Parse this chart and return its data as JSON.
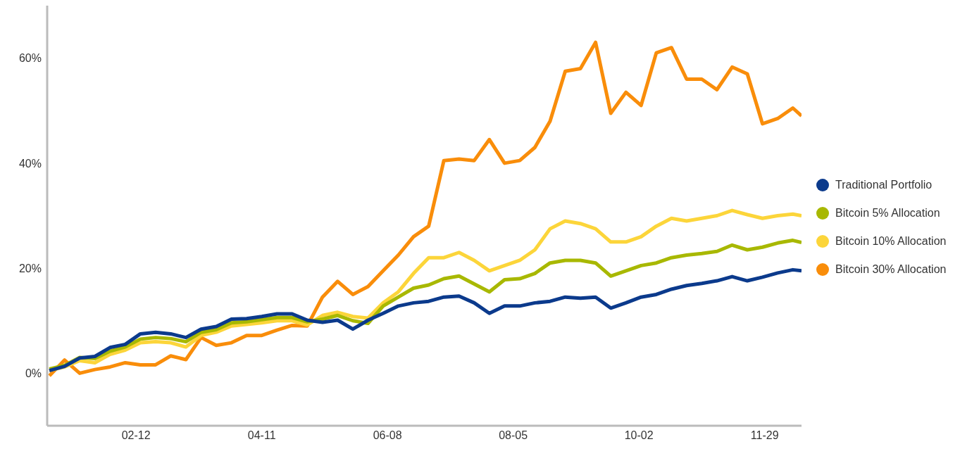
{
  "chart_data": {
    "type": "line",
    "x": [
      "--01-03",
      "--01-10",
      "--01-17",
      "--01-24",
      "--01-31",
      "--02-07",
      "--02-14",
      "--02-21",
      "--02-28",
      "--03-07",
      "--03-14",
      "--03-21",
      "--03-28",
      "--04-04",
      "--04-11",
      "--04-18",
      "--04-25",
      "--05-02",
      "--05-09",
      "--05-16",
      "--05-23",
      "--05-30",
      "--06-06",
      "--06-13",
      "--06-20",
      "--06-27",
      "--07-04",
      "--07-11",
      "--07-18",
      "--07-25",
      "--08-01",
      "--08-08",
      "--08-15",
      "--08-22",
      "--08-29",
      "--09-05",
      "--09-12",
      "--09-19",
      "--09-26",
      "--10-03",
      "--10-10",
      "--10-17",
      "--10-24",
      "--10-31",
      "--11-07",
      "--11-14",
      "--11-21",
      "--11-28",
      "--12-05",
      "--12-12",
      "--12-16"
    ],
    "series": [
      {
        "name": "Traditional Portfolio",
        "color": "#0b3a8c",
        "values": [
          0.5,
          1.3,
          2.9,
          3.2,
          4.9,
          5.5,
          7.5,
          7.8,
          7.5,
          6.8,
          8.4,
          8.9,
          10.3,
          10.4,
          10.8,
          11.3,
          11.3,
          10.1,
          9.7,
          10.1,
          8.4,
          10.1,
          11.4,
          12.8,
          13.4,
          13.7,
          14.5,
          14.7,
          13.4,
          11.4,
          12.8,
          12.8,
          13.4,
          13.7,
          14.5,
          14.3,
          14.5,
          12.4,
          13.4,
          14.5,
          15,
          16,
          16.7,
          17.1,
          17.6,
          18.4,
          17.6,
          18.3,
          19.1,
          19.7,
          19.5
        ]
      },
      {
        "name": "Bitcoin 5% Allocation",
        "color": "#a8b800",
        "values": [
          0.8,
          1.5,
          3,
          2.8,
          4.2,
          5,
          6.5,
          6.8,
          6.6,
          6,
          7.8,
          8.3,
          9.6,
          9.8,
          10.2,
          10.6,
          10.6,
          9.8,
          10.3,
          11,
          10,
          9.5,
          12.8,
          14.5,
          16.2,
          16.8,
          18,
          18.5,
          17,
          15.5,
          17.8,
          18,
          19,
          21,
          21.5,
          21.5,
          21,
          18.5,
          19.5,
          20.5,
          21,
          22,
          22.5,
          22.8,
          23.2,
          24.4,
          23.5,
          24,
          24.8,
          25.3,
          24.9
        ]
      },
      {
        "name": "Bitcoin 10% Allocation",
        "color": "#fcd53a",
        "values": [
          0.5,
          1.2,
          2.4,
          2,
          3.6,
          4.4,
          5.8,
          6,
          5.8,
          5,
          7.2,
          7.8,
          9,
          9.3,
          9.6,
          10,
          10,
          9.2,
          11,
          11.6,
          10.8,
          10.5,
          13.4,
          15.5,
          19,
          22,
          22,
          23,
          21.5,
          19.5,
          20.5,
          21.5,
          23.5,
          27.5,
          29,
          28.5,
          27.5,
          25,
          25,
          26,
          28,
          29.5,
          29,
          29.5,
          30,
          31,
          30.2,
          29.5,
          30,
          30.3,
          30
        ]
      },
      {
        "name": "Bitcoin 30% Allocation",
        "color": "#f98d0a",
        "values": [
          -0.5,
          2.5,
          0,
          0.7,
          1.2,
          2,
          1.6,
          1.6,
          3.3,
          2.6,
          6.8,
          5.3,
          5.8,
          7.2,
          7.2,
          8.2,
          9.1,
          9,
          14.5,
          17.5,
          15,
          16.5,
          19.5,
          22.5,
          26,
          28,
          40.5,
          40.8,
          40.5,
          44.5,
          40,
          40.5,
          43,
          48,
          57.5,
          58,
          63,
          49.5,
          53.5,
          51,
          61,
          62,
          56,
          56,
          54,
          58.3,
          57,
          47.5,
          48.5,
          50.5,
          49
        ]
      }
    ],
    "xlim": [
      "--01-02",
      "--12-16"
    ],
    "xticks": [
      {
        "value": "--02-12",
        "label": "02-12"
      },
      {
        "value": "--04-11",
        "label": "04-11"
      },
      {
        "value": "--06-08",
        "label": "06-08"
      },
      {
        "value": "--08-05",
        "label": "08-05"
      },
      {
        "value": "--10-02",
        "label": "10-02"
      },
      {
        "value": "--11-29",
        "label": "11-29"
      }
    ],
    "ylim": [
      -10,
      70
    ],
    "yticks": [
      {
        "value": 0,
        "label": "0%"
      },
      {
        "value": 20,
        "label": "20%"
      },
      {
        "value": 40,
        "label": "40%"
      },
      {
        "value": 60,
        "label": "60%"
      }
    ],
    "grid": false,
    "legend": "right",
    "marker": "none",
    "line_style": "solid"
  }
}
